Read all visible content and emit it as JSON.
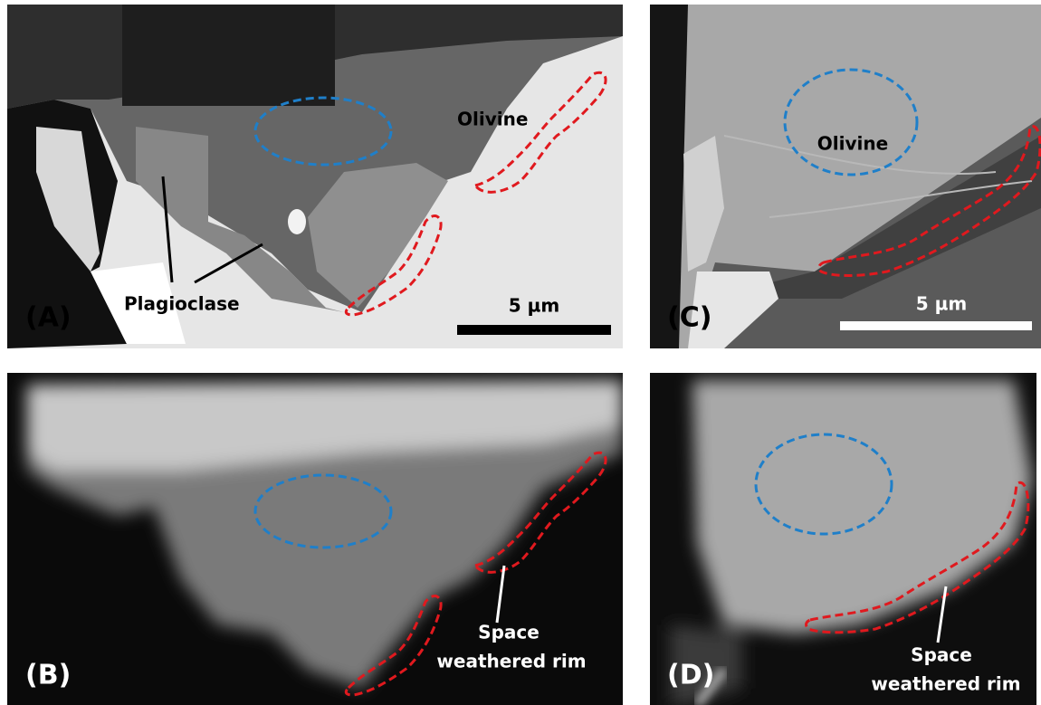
{
  "panels": [
    {
      "label": "(A)",
      "mineral": "Olivine",
      "secondary": "Plagioclase",
      "scale_bar": "5 µm"
    },
    {
      "label": "(B)",
      "rim_label": [
        "Space",
        "weathered rim"
      ]
    },
    {
      "label": "(C)",
      "mineral": "Olivine",
      "scale_bar": "5 µm"
    },
    {
      "label": "(D)",
      "rim_label": [
        "Space",
        "weathered rim"
      ]
    }
  ]
}
